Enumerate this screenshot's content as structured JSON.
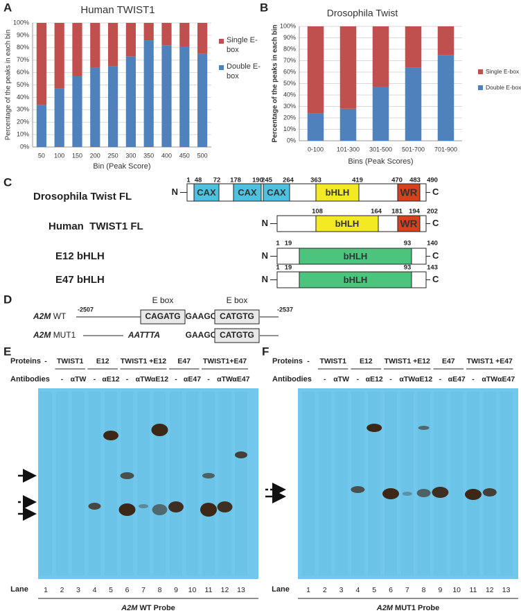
{
  "chart_data": [
    {
      "type": "bar",
      "stacked": true,
      "panel": "A",
      "title": "Human TWIST1",
      "x_label": "Bin (Peak Score)",
      "y_label": "Percentage of the peaks in each bin",
      "categories": [
        "50",
        "100",
        "150",
        "200",
        "250",
        "300",
        "350",
        "400",
        "450",
        "500"
      ],
      "series": [
        {
          "name": "Double E-box",
          "color": "#4f81bd",
          "values": [
            34,
            47,
            57,
            64,
            65,
            73,
            86,
            82,
            81,
            75
          ]
        },
        {
          "name": "Single E-box",
          "color": "#c0504d",
          "values": [
            66,
            53,
            43,
            36,
            35,
            27,
            14,
            18,
            19,
            25
          ]
        }
      ],
      "ylim": [
        0,
        100
      ],
      "yticks": [
        {
          "value": 0,
          "label": "0%"
        },
        {
          "value": 10,
          "label": "10%"
        },
        {
          "value": 20,
          "label": "20%"
        },
        {
          "value": 30,
          "label": "30%"
        },
        {
          "value": 40,
          "label": "40%"
        },
        {
          "value": 50,
          "label": "50%"
        },
        {
          "value": 60,
          "label": "60%"
        },
        {
          "value": 70,
          "label": "70%"
        },
        {
          "value": 80,
          "label": "80%"
        },
        {
          "value": 90,
          "label": "90%"
        },
        {
          "value": 100,
          "label": "100%"
        }
      ],
      "grid": true,
      "legend": "right"
    },
    {
      "type": "bar",
      "stacked": true,
      "panel": "B",
      "title": "Drosophila Twist",
      "x_label": "Bins (Peak Scores)",
      "y_label": "Percentage of the peaks in each bin",
      "categories": [
        "0-100",
        "101-300",
        "301-500",
        "501-700",
        "701-900"
      ],
      "series": [
        {
          "name": "Double E-box",
          "color": "#4f81bd",
          "values": [
            24,
            28,
            47,
            64,
            75
          ]
        },
        {
          "name": "Single E-box",
          "color": "#c0504d",
          "values": [
            76,
            72,
            53,
            36,
            25
          ]
        }
      ],
      "ylim": [
        0,
        100
      ],
      "yticks": [
        {
          "value": 0,
          "label": "0%"
        },
        {
          "value": 10,
          "label": "10%"
        },
        {
          "value": 20,
          "label": "20%"
        },
        {
          "value": 30,
          "label": "30%"
        },
        {
          "value": 40,
          "label": "40%"
        },
        {
          "value": 50,
          "label": "50%"
        },
        {
          "value": 60,
          "label": "60%"
        },
        {
          "value": 70,
          "label": "70%"
        },
        {
          "value": 80,
          "label": "80%"
        },
        {
          "value": 90,
          "label": "90%"
        },
        {
          "value": 100,
          "label": "100%"
        }
      ],
      "grid": true,
      "legend": "right"
    }
  ],
  "panel_c": {
    "label": "C",
    "proteins": [
      {
        "name": "Drosophila Twist FL",
        "n": "N",
        "c": "C",
        "positions": [
          1,
          48,
          72,
          178,
          190,
          245,
          264,
          363,
          419,
          470,
          483,
          490
        ],
        "domains": [
          "CAX",
          "CAX",
          "CAX",
          "bHLH",
          "WR"
        ]
      },
      {
        "name": "Human  TWIST1 FL",
        "n": "N",
        "c": "C",
        "positions": [
          108,
          164,
          181,
          194,
          202
        ],
        "domains": [
          "bHLH",
          "WR"
        ]
      },
      {
        "name": "E12 bHLH",
        "n": "N",
        "c": "C",
        "positions": [
          1,
          19,
          93,
          140
        ],
        "domains": [
          "bHLH"
        ]
      },
      {
        "name": "E47 bHLH",
        "n": "N",
        "c": "C",
        "positions": [
          1,
          19,
          93,
          143
        ],
        "domains": [
          "bHLH"
        ]
      }
    ]
  },
  "panel_d": {
    "label": "D",
    "ebox_labels": [
      "E box",
      "E box"
    ],
    "wt": {
      "gene": "A2M",
      "suffix": "WT",
      "start": -2507,
      "end": -2537,
      "seq": [
        "CAGATG",
        "GAAGC",
        "CATGTG"
      ]
    },
    "mut": {
      "gene": "A2M",
      "suffix": "MUT1",
      "seq": [
        "AATTTA",
        "GAAGC",
        "CATGTG"
      ]
    }
  },
  "gels": [
    {
      "label": "E",
      "proteins_heading": "Proteins",
      "antibodies_heading": "Antibodies",
      "proteins": [
        "-",
        "TWIST1",
        "E12",
        "TWIST1 +E12",
        "E47",
        "TWIST1+E47"
      ],
      "antibodies": [
        "-",
        "αTW",
        "-",
        "αE12",
        "-",
        "αTW",
        "αE12",
        "-",
        "αE47",
        "-",
        "αTW",
        "αE47"
      ],
      "lane_heading": "Lane",
      "lanes": [
        1,
        2,
        3,
        4,
        5,
        6,
        7,
        8,
        9,
        10,
        11,
        12,
        13
      ],
      "probe": {
        "gene": "A2M",
        "rest": "WT Probe"
      }
    },
    {
      "label": "F",
      "proteins_heading": "Proteins",
      "antibodies_heading": "Antibodies",
      "proteins": [
        "-",
        "TWIST1",
        "E12",
        "TWIST1 +E12",
        "E47",
        "TWIST1 +E47"
      ],
      "antibodies": [
        "-",
        "αTW",
        "-",
        "αE12",
        "-",
        "αTW",
        "αE12",
        "-",
        "αE47",
        "-",
        "αTW",
        "αE47"
      ],
      "lane_heading": "Lane",
      "lanes": [
        1,
        2,
        3,
        4,
        5,
        6,
        7,
        8,
        9,
        10,
        11,
        12,
        13
      ],
      "probe": {
        "gene": "A2M",
        "rest": "MUT1 Probe"
      }
    }
  ]
}
